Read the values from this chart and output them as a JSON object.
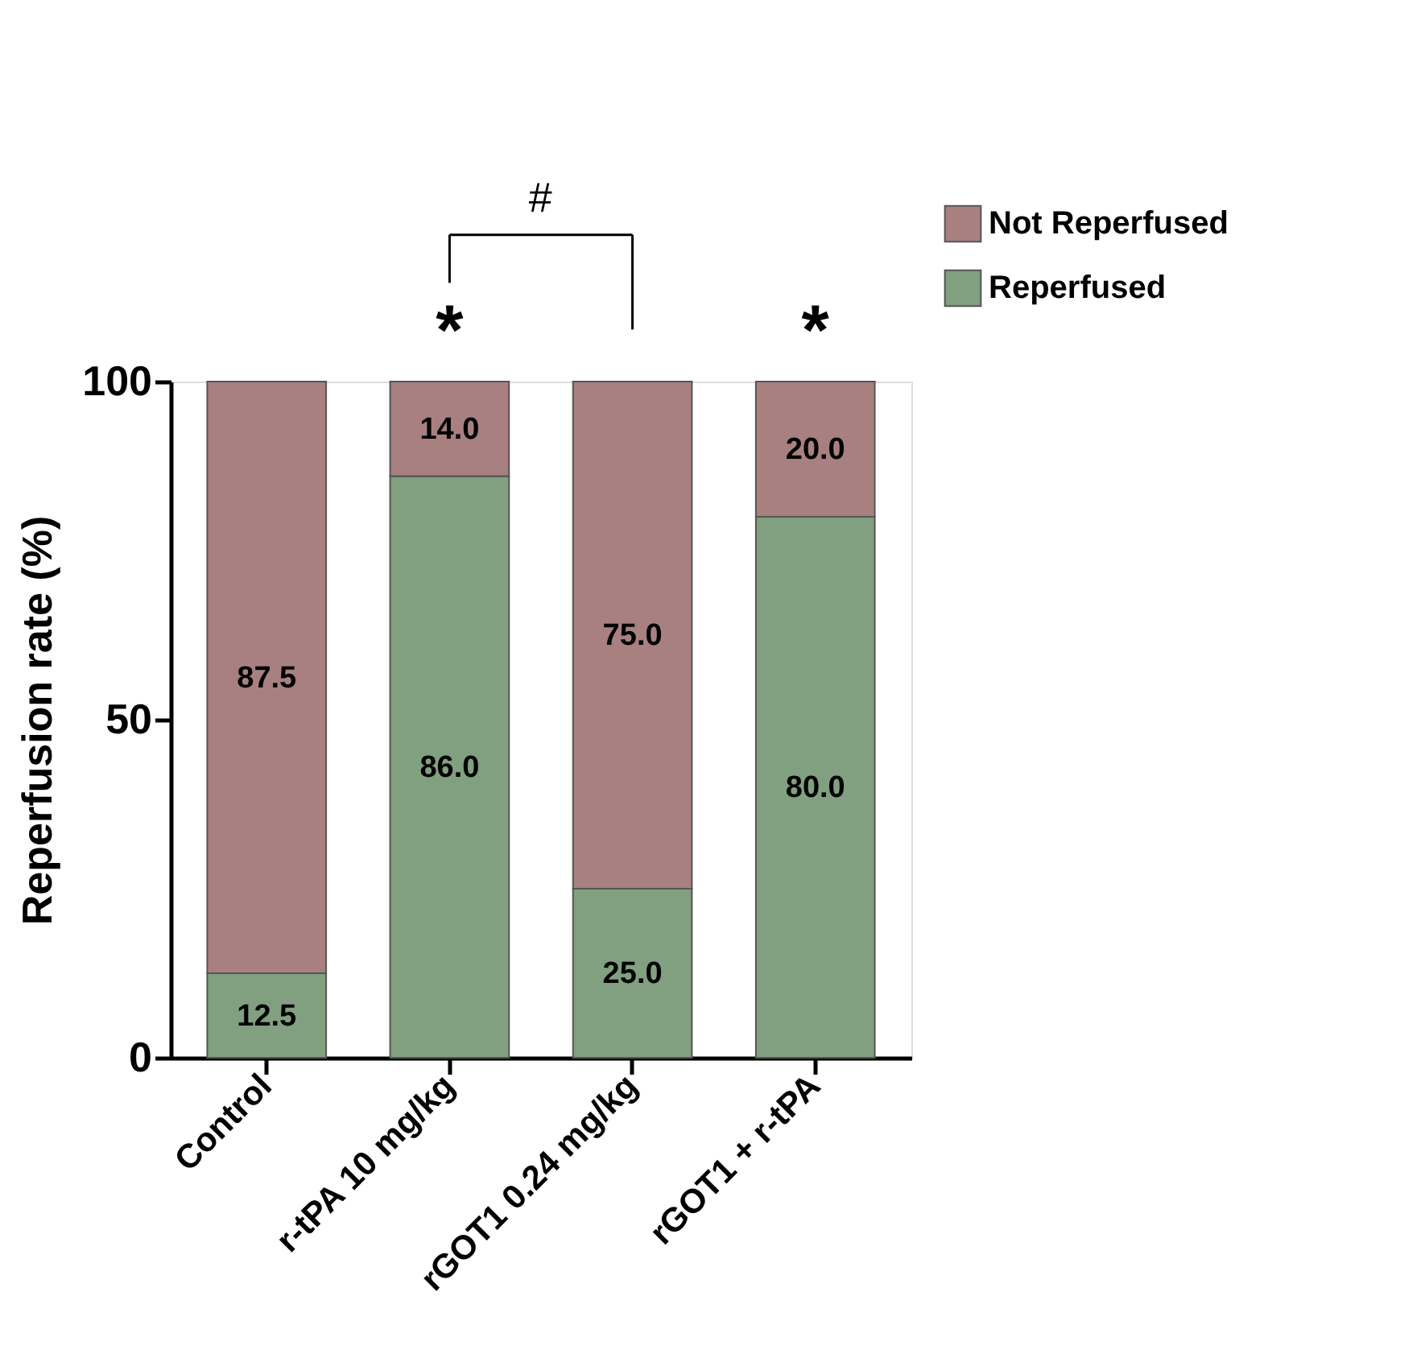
{
  "chart_data": {
    "type": "bar",
    "stacked": true,
    "ylabel": "Reperfusion rate (%)",
    "categories": [
      "Control",
      "r-tPA 10 mg/kg",
      "rGOT1 0.24 mg/kg",
      "rGOT1 + r-tPA"
    ],
    "series": [
      {
        "name": "Reperfused",
        "color": "#80a080",
        "values": [
          12.5,
          86,
          25,
          80
        ],
        "value_labels": [
          "12.5",
          "86.0",
          "25.0",
          "80.0"
        ]
      },
      {
        "name": "Not Reperfused",
        "color": "#a88080",
        "values": [
          87.5,
          14,
          75,
          20
        ],
        "value_labels": [
          "87.5",
          "14.0",
          "75.0",
          "20.0"
        ]
      }
    ],
    "ylim": [
      0,
      100
    ],
    "yticks": [
      0,
      50,
      100
    ],
    "grid": false,
    "legend": "top right",
    "annotations": [
      "*",
      "*",
      "#"
    ]
  }
}
